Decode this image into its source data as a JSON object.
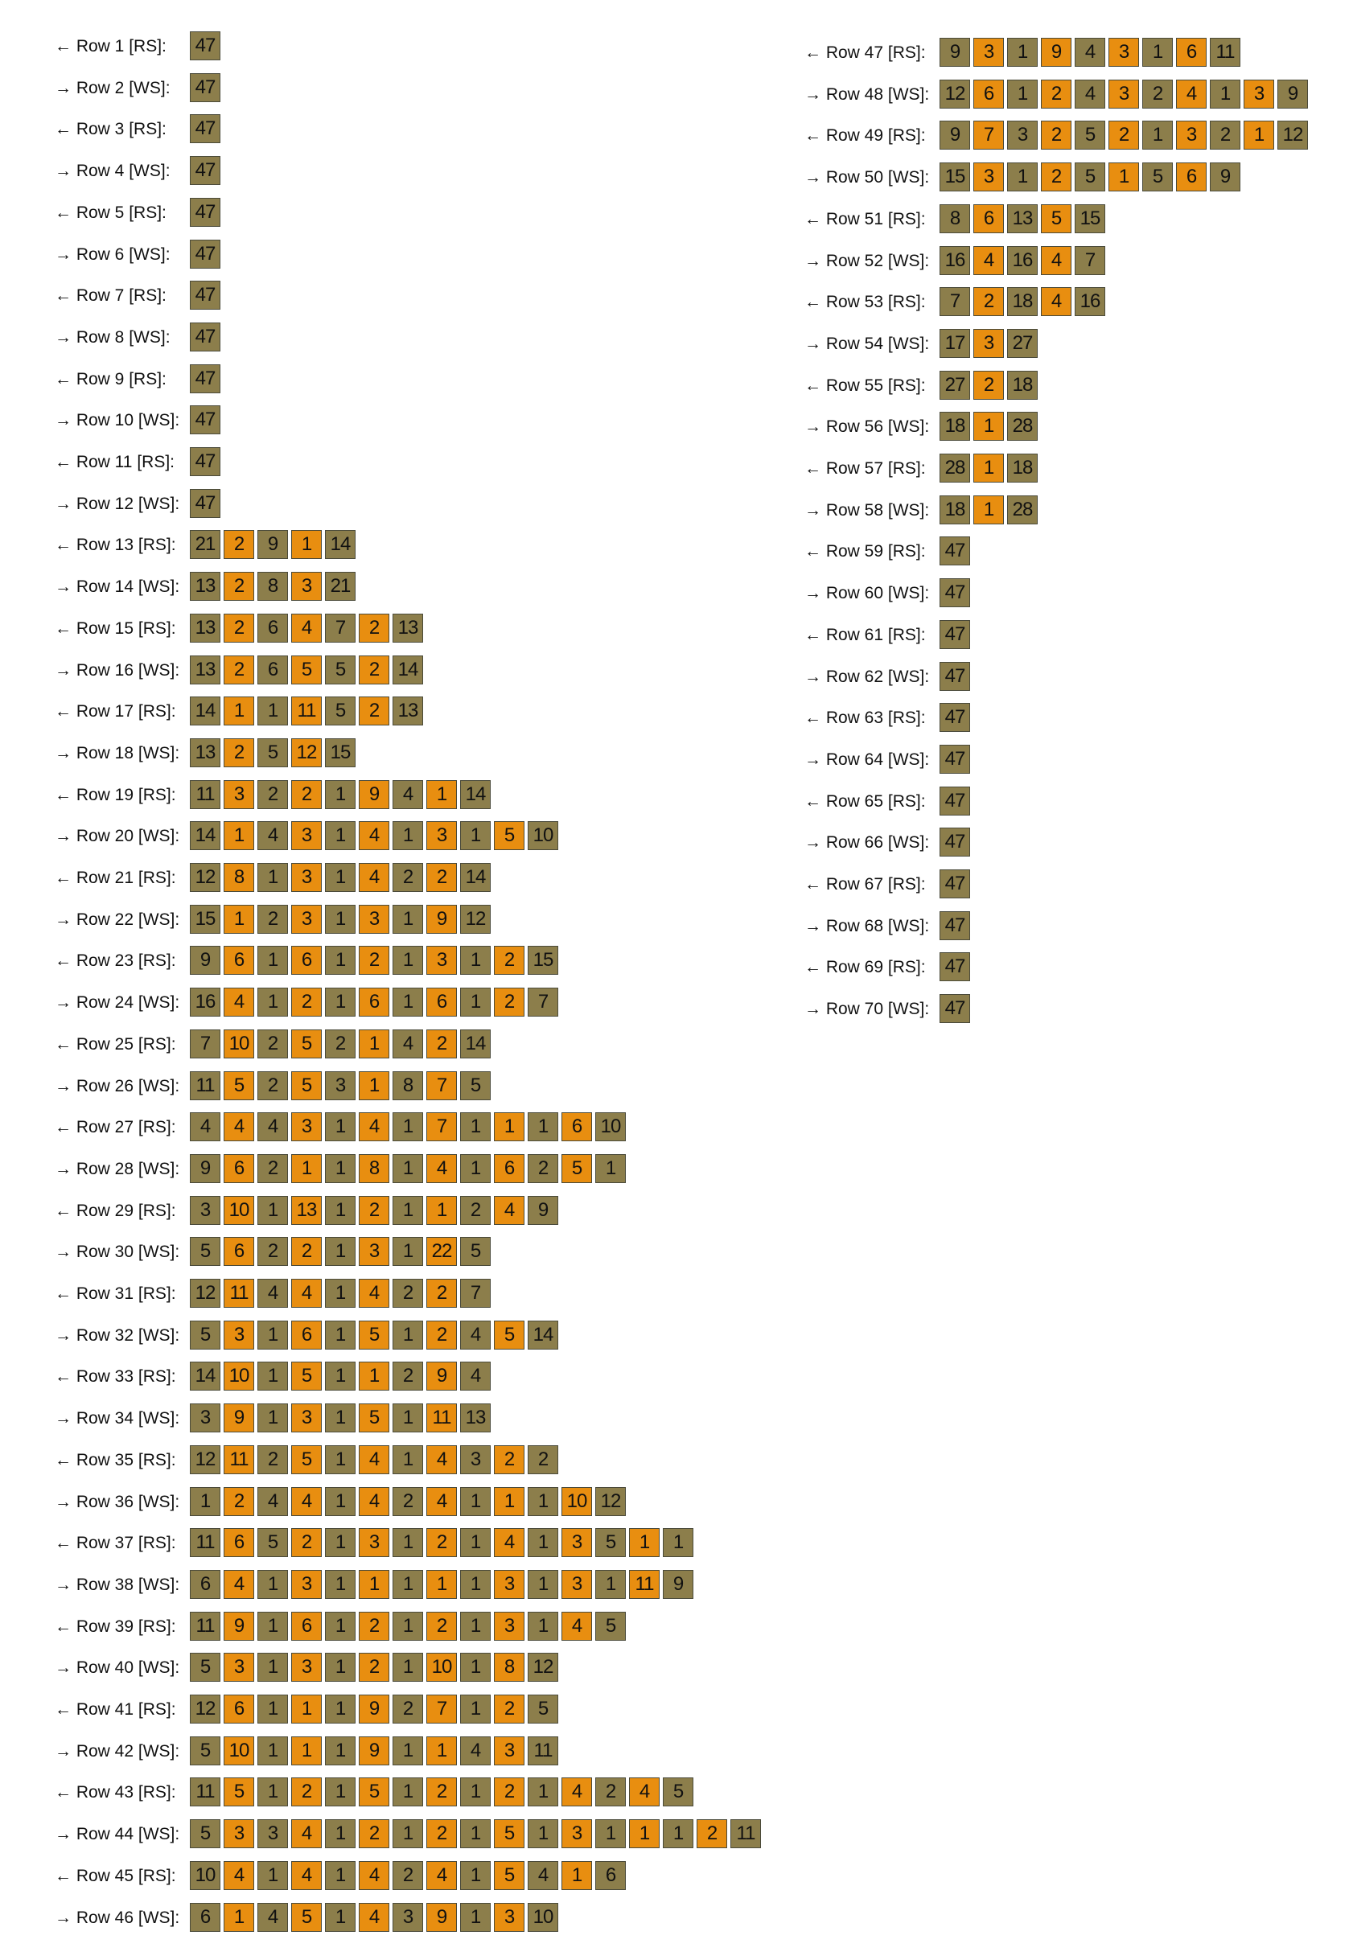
{
  "colors": {
    "color_a": "#8c7e4b",
    "color_b": "#e88e10"
  },
  "rows": [
    {
      "label": "← Row 1 [RS]:",
      "cells": [
        47
      ]
    },
    {
      "label": "→ Row 2 [WS]:",
      "cells": [
        47
      ]
    },
    {
      "label": "← Row 3 [RS]:",
      "cells": [
        47
      ]
    },
    {
      "label": "→ Row 4 [WS]:",
      "cells": [
        47
      ]
    },
    {
      "label": "← Row 5 [RS]:",
      "cells": [
        47
      ]
    },
    {
      "label": "→ Row 6 [WS]:",
      "cells": [
        47
      ]
    },
    {
      "label": "← Row 7 [RS]:",
      "cells": [
        47
      ]
    },
    {
      "label": "→ Row 8 [WS]:",
      "cells": [
        47
      ]
    },
    {
      "label": "← Row 9 [RS]:",
      "cells": [
        47
      ]
    },
    {
      "label": "→ Row 10 [WS]:",
      "cells": [
        47
      ]
    },
    {
      "label": "← Row 11 [RS]:",
      "cells": [
        47
      ]
    },
    {
      "label": "→ Row 12 [WS]:",
      "cells": [
        47
      ]
    },
    {
      "label": "← Row 13 [RS]:",
      "cells": [
        21,
        2,
        9,
        1,
        14
      ]
    },
    {
      "label": "→ Row 14 [WS]:",
      "cells": [
        13,
        2,
        8,
        3,
        21
      ]
    },
    {
      "label": "← Row 15 [RS]:",
      "cells": [
        13,
        2,
        6,
        4,
        7,
        2,
        13
      ]
    },
    {
      "label": "→ Row 16 [WS]:",
      "cells": [
        13,
        2,
        6,
        5,
        5,
        2,
        14
      ]
    },
    {
      "label": "← Row 17 [RS]:",
      "cells": [
        14,
        1,
        1,
        11,
        5,
        2,
        13
      ]
    },
    {
      "label": "→ Row 18 [WS]:",
      "cells": [
        13,
        2,
        5,
        12,
        15
      ]
    },
    {
      "label": "← Row 19 [RS]:",
      "cells": [
        11,
        3,
        2,
        2,
        1,
        9,
        4,
        1,
        14
      ]
    },
    {
      "label": "→ Row 20 [WS]:",
      "cells": [
        14,
        1,
        4,
        3,
        1,
        4,
        1,
        3,
        1,
        5,
        10
      ]
    },
    {
      "label": "← Row 21 [RS]:",
      "cells": [
        12,
        8,
        1,
        3,
        1,
        4,
        2,
        2,
        14
      ]
    },
    {
      "label": "→ Row 22 [WS]:",
      "cells": [
        15,
        1,
        2,
        3,
        1,
        3,
        1,
        9,
        12
      ]
    },
    {
      "label": "← Row 23 [RS]:",
      "cells": [
        9,
        6,
        1,
        6,
        1,
        2,
        1,
        3,
        1,
        2,
        15
      ]
    },
    {
      "label": "→ Row 24 [WS]:",
      "cells": [
        16,
        4,
        1,
        2,
        1,
        6,
        1,
        6,
        1,
        2,
        7
      ]
    },
    {
      "label": "← Row 25 [RS]:",
      "cells": [
        7,
        10,
        2,
        5,
        2,
        1,
        4,
        2,
        14
      ]
    },
    {
      "label": "→ Row 26 [WS]:",
      "cells": [
        11,
        5,
        2,
        5,
        3,
        1,
        8,
        7,
        5
      ]
    },
    {
      "label": "← Row 27 [RS]:",
      "cells": [
        4,
        4,
        4,
        3,
        1,
        4,
        1,
        7,
        1,
        1,
        1,
        6,
        10
      ]
    },
    {
      "label": "→ Row 28 [WS]:",
      "cells": [
        9,
        6,
        2,
        1,
        1,
        8,
        1,
        4,
        1,
        6,
        2,
        5,
        1
      ]
    },
    {
      "label": "← Row 29 [RS]:",
      "cells": [
        3,
        10,
        1,
        13,
        1,
        2,
        1,
        1,
        2,
        4,
        9
      ]
    },
    {
      "label": "→ Row 30 [WS]:",
      "cells": [
        5,
        6,
        2,
        2,
        1,
        3,
        1,
        22,
        5
      ]
    },
    {
      "label": "← Row 31 [RS]:",
      "cells": [
        12,
        11,
        4,
        4,
        1,
        4,
        2,
        2,
        7
      ]
    },
    {
      "label": "→ Row 32 [WS]:",
      "cells": [
        5,
        3,
        1,
        6,
        1,
        5,
        1,
        2,
        4,
        5,
        14
      ]
    },
    {
      "label": "← Row 33 [RS]:",
      "cells": [
        14,
        10,
        1,
        5,
        1,
        1,
        2,
        9,
        4
      ]
    },
    {
      "label": "→ Row 34 [WS]:",
      "cells": [
        3,
        9,
        1,
        3,
        1,
        5,
        1,
        11,
        13
      ]
    },
    {
      "label": "← Row 35 [RS]:",
      "cells": [
        12,
        11,
        2,
        5,
        1,
        4,
        1,
        4,
        3,
        2,
        2
      ]
    },
    {
      "label": "→ Row 36 [WS]:",
      "cells": [
        1,
        2,
        4,
        4,
        1,
        4,
        2,
        4,
        1,
        1,
        1,
        10,
        12
      ]
    },
    {
      "label": "← Row 37 [RS]:",
      "cells": [
        11,
        6,
        5,
        2,
        1,
        3,
        1,
        2,
        1,
        4,
        1,
        3,
        5,
        1,
        1
      ]
    },
    {
      "label": "→ Row 38 [WS]:",
      "cells": [
        6,
        4,
        1,
        3,
        1,
        1,
        1,
        1,
        1,
        3,
        1,
        3,
        1,
        11,
        9
      ]
    },
    {
      "label": "← Row 39 [RS]:",
      "cells": [
        11,
        9,
        1,
        6,
        1,
        2,
        1,
        2,
        1,
        3,
        1,
        4,
        5
      ]
    },
    {
      "label": "→ Row 40 [WS]:",
      "cells": [
        5,
        3,
        1,
        3,
        1,
        2,
        1,
        10,
        1,
        8,
        12
      ]
    },
    {
      "label": "← Row 41 [RS]:",
      "cells": [
        12,
        6,
        1,
        1,
        1,
        9,
        2,
        7,
        1,
        2,
        5
      ]
    },
    {
      "label": "→ Row 42 [WS]:",
      "cells": [
        5,
        10,
        1,
        1,
        1,
        9,
        1,
        1,
        4,
        3,
        11
      ]
    },
    {
      "label": "← Row 43 [RS]:",
      "cells": [
        11,
        5,
        1,
        2,
        1,
        5,
        1,
        2,
        1,
        2,
        1,
        4,
        2,
        4,
        5
      ]
    },
    {
      "label": "→ Row 44 [WS]:",
      "cells": [
        5,
        3,
        3,
        4,
        1,
        2,
        1,
        2,
        1,
        5,
        1,
        3,
        1,
        1,
        1,
        2,
        11
      ]
    },
    {
      "label": "← Row 45 [RS]:",
      "cells": [
        10,
        4,
        1,
        4,
        1,
        4,
        2,
        4,
        1,
        5,
        4,
        1,
        6
      ]
    },
    {
      "label": "→ Row 46 [WS]:",
      "cells": [
        6,
        1,
        4,
        5,
        1,
        4,
        3,
        9,
        1,
        3,
        10
      ]
    },
    {
      "label": "← Row 47 [RS]:",
      "cells": [
        9,
        3,
        1,
        9,
        4,
        3,
        1,
        6,
        11
      ]
    },
    {
      "label": "→ Row 48 [WS]:",
      "cells": [
        12,
        6,
        1,
        2,
        4,
        3,
        2,
        4,
        1,
        3,
        9
      ]
    },
    {
      "label": "← Row 49 [RS]:",
      "cells": [
        9,
        7,
        3,
        2,
        5,
        2,
        1,
        3,
        2,
        1,
        12
      ]
    },
    {
      "label": "→ Row 50 [WS]:",
      "cells": [
        15,
        3,
        1,
        2,
        5,
        1,
        5,
        6,
        9
      ]
    },
    {
      "label": "← Row 51 [RS]:",
      "cells": [
        8,
        6,
        13,
        5,
        15
      ]
    },
    {
      "label": "→ Row 52 [WS]:",
      "cells": [
        16,
        4,
        16,
        4,
        7
      ]
    },
    {
      "label": "← Row 53 [RS]:",
      "cells": [
        7,
        2,
        18,
        4,
        16
      ]
    },
    {
      "label": "→ Row 54 [WS]:",
      "cells": [
        17,
        3,
        27
      ]
    },
    {
      "label": "← Row 55 [RS]:",
      "cells": [
        27,
        2,
        18
      ]
    },
    {
      "label": "→ Row 56 [WS]:",
      "cells": [
        18,
        1,
        28
      ]
    },
    {
      "label": "← Row 57 [RS]:",
      "cells": [
        28,
        1,
        18
      ]
    },
    {
      "label": "→ Row 58 [WS]:",
      "cells": [
        18,
        1,
        28
      ]
    },
    {
      "label": "← Row 59 [RS]:",
      "cells": [
        47
      ]
    },
    {
      "label": "→ Row 60 [WS]:",
      "cells": [
        47
      ]
    },
    {
      "label": "← Row 61 [RS]:",
      "cells": [
        47
      ]
    },
    {
      "label": "→ Row 62 [WS]:",
      "cells": [
        47
      ]
    },
    {
      "label": "← Row 63 [RS]:",
      "cells": [
        47
      ]
    },
    {
      "label": "→ Row 64 [WS]:",
      "cells": [
        47
      ]
    },
    {
      "label": "← Row 65 [RS]:",
      "cells": [
        47
      ]
    },
    {
      "label": "→ Row 66 [WS]:",
      "cells": [
        47
      ]
    },
    {
      "label": "← Row 67 [RS]:",
      "cells": [
        47
      ]
    },
    {
      "label": "→ Row 68 [WS]:",
      "cells": [
        47
      ]
    },
    {
      "label": "← Row 69 [RS]:",
      "cells": [
        47
      ]
    },
    {
      "label": "→ Row 70 [WS]:",
      "cells": [
        47
      ]
    }
  ]
}
